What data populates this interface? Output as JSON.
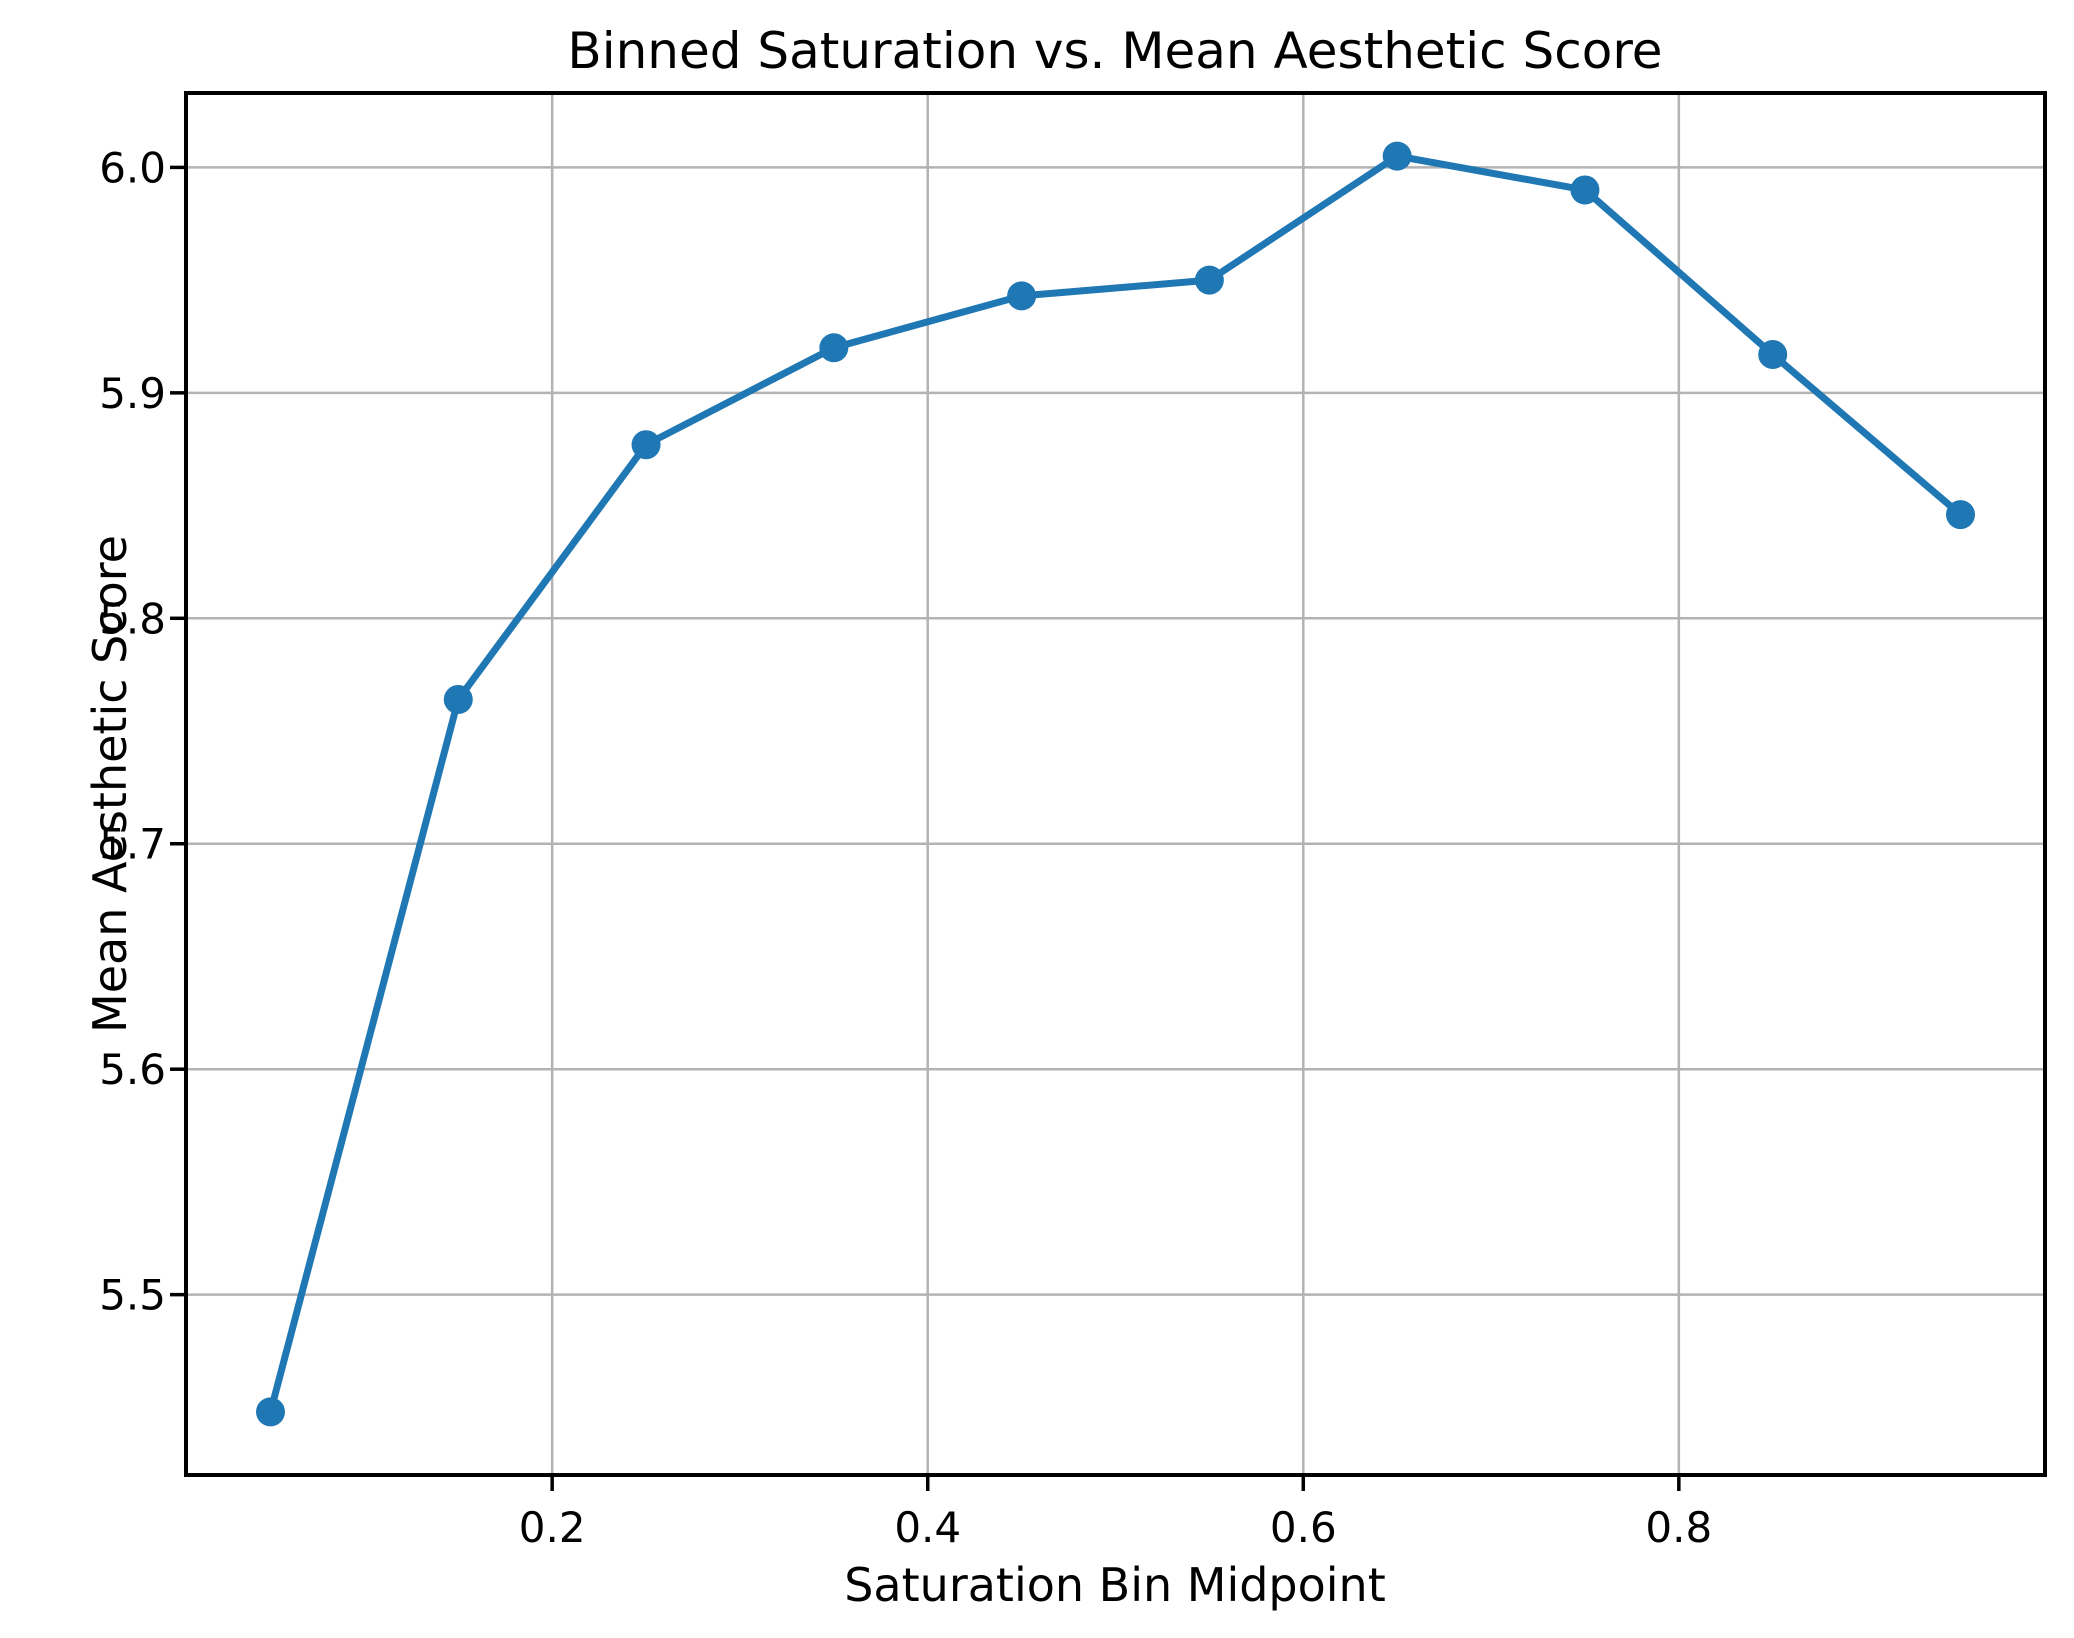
{
  "figure": {
    "background_color": "#ffffff"
  },
  "chart_data": {
    "type": "line",
    "title": "Binned Saturation vs. Mean Aesthetic Score",
    "xlabel": "Saturation Bin Midpoint",
    "ylabel": "Mean Aesthetic Score",
    "x": [
      0.05,
      0.15,
      0.25,
      0.35,
      0.45,
      0.55,
      0.65,
      0.75,
      0.85,
      0.95
    ],
    "series": [
      {
        "name": "Mean Aesthetic Score",
        "values": [
          5.448,
          5.764,
          5.877,
          5.92,
          5.943,
          5.95,
          6.005,
          5.99,
          5.917,
          5.846
        ]
      }
    ],
    "xlim": [
      0.005,
      0.995
    ],
    "ylim": [
      5.42,
      6.033
    ],
    "xticks": [
      0.2,
      0.4,
      0.6,
      0.8
    ],
    "xtick_labels": [
      "0.2",
      "0.4",
      "0.6",
      "0.8"
    ],
    "yticks": [
      5.5,
      5.6,
      5.7,
      5.8,
      5.9,
      6.0
    ],
    "ytick_labels": [
      "5.5",
      "5.6",
      "5.7",
      "5.8",
      "5.9",
      "6.0"
    ],
    "grid": true,
    "legend": "none",
    "line_color": "#1f77b4",
    "marker": "o",
    "grid_color": "#b3b3b3",
    "spine_color": "#000000",
    "text_color": "#000000"
  }
}
